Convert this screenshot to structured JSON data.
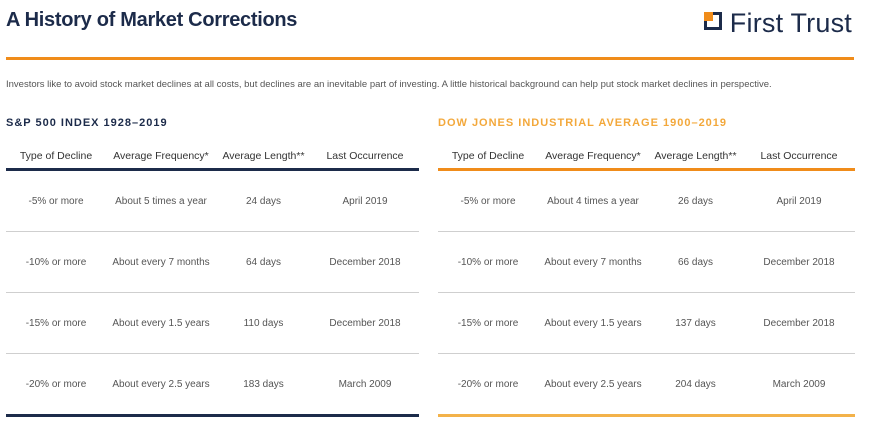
{
  "header": {
    "title": "A History of Market Corrections",
    "logo_text": "First Trust"
  },
  "intro": "Investors like to avoid stock market declines at all costs, but declines are an inevitable part of investing. A little historical background can help put stock market declines in perspective.",
  "colors": {
    "navy": "#1c2b4a",
    "orange": "#f08c1a",
    "light_orange": "#f3a83b"
  },
  "sp500": {
    "heading": "S&P 500 INDEX 1928–2019",
    "columns": [
      "Type of Decline",
      "Average Frequency*",
      "Average Length**",
      "Last Occurrence"
    ],
    "rows": [
      [
        "-5% or more",
        "About 5 times a year",
        "24 days",
        "April 2019"
      ],
      [
        "-10% or more",
        "About every 7 months",
        "64 days",
        "December 2018"
      ],
      [
        "-15% or more",
        "About every 1.5 years",
        "110 days",
        "December 2018"
      ],
      [
        "-20% or more",
        "About every 2.5 years",
        "183 days",
        "March 2009"
      ]
    ]
  },
  "dow": {
    "heading": "DOW JONES INDUSTRIAL AVERAGE 1900–2019",
    "columns": [
      "Type of Decline",
      "Average Frequency*",
      "Average Length**",
      "Last Occurrence"
    ],
    "rows": [
      [
        "-5% or more",
        "About 4 times a year",
        "26 days",
        "April 2019"
      ],
      [
        "-10% or more",
        "About every 7 months",
        "66 days",
        "December 2018"
      ],
      [
        "-15% or more",
        "About every 1.5 years",
        "137 days",
        "December 2018"
      ],
      [
        "-20% or more",
        "About every 2.5 years",
        "204 days",
        "March 2009"
      ]
    ]
  }
}
